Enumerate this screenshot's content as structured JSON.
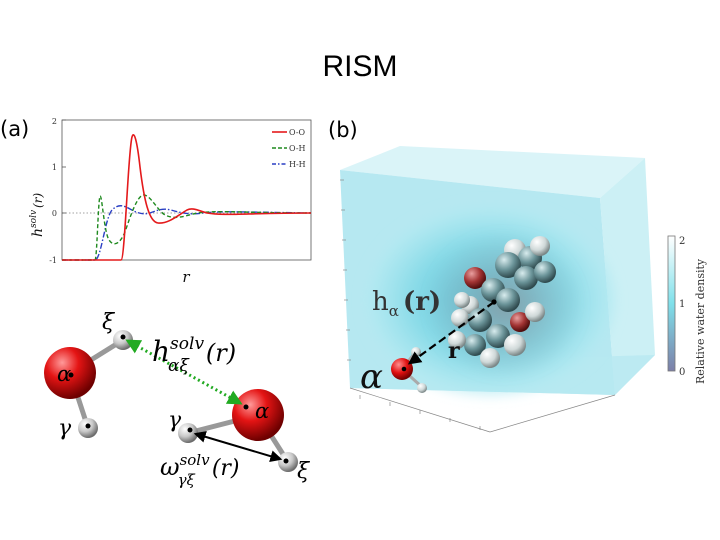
{
  "title": "RISM",
  "panel_a": {
    "label": "(a)",
    "chart": {
      "ylabel_main": "h",
      "ylabel_sup": "solv",
      "ylabel_arg": "(r)",
      "xlabel": "r",
      "yticks": [
        "2",
        "1",
        "0",
        "-1"
      ],
      "legend": [
        "O-O",
        "O-H",
        "H-H"
      ]
    },
    "chart_data": {
      "type": "line",
      "xlabel": "r",
      "ylim": [
        -1,
        2
      ],
      "series": [
        {
          "name": "O-O",
          "color": "#e41a1c",
          "style": "solid"
        },
        {
          "name": "O-H",
          "color": "#1f8a1f",
          "style": "dashed"
        },
        {
          "name": "H-H",
          "color": "#2a3fc4",
          "style": "dash-dot"
        }
      ]
    },
    "diagram": {
      "alpha_left": "α",
      "xi_left": "ξ",
      "gamma_left": "γ",
      "h_label_main": "h",
      "h_label_sup": "solv",
      "h_label_sub": "αξ",
      "h_label_arg": "(r)",
      "alpha_right": "α",
      "gamma_right": "γ",
      "xi_right": "ξ",
      "omega_main": "ω",
      "omega_sup": "solv",
      "omega_sub": "γξ",
      "omega_arg": "(r)",
      "colors": {
        "oxygen": "#dd1111",
        "hydrogen": "#bbbbbb",
        "h_arrow": "#22aa22",
        "omega_arrow": "#000000"
      }
    }
  },
  "panel_b": {
    "label": "(b)",
    "h_alpha_main": "h",
    "h_alpha_sub": "α",
    "h_alpha_arg": "(r)",
    "r_label": "r",
    "alpha": "α",
    "colorbar": {
      "title": "Relative water density",
      "ticks": [
        "2",
        "1",
        "0"
      ],
      "colors": [
        "#ffffff",
        "#7fe0ea",
        "#7c7fa8"
      ]
    }
  }
}
